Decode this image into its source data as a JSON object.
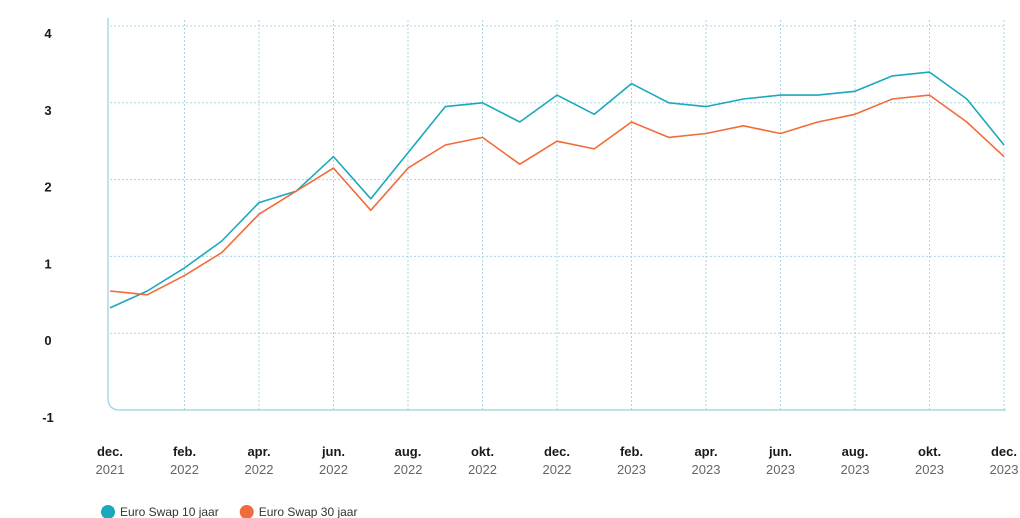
{
  "chart_data": {
    "type": "line",
    "x": [
      "2021-12",
      "2022-01",
      "2022-02",
      "2022-03",
      "2022-04",
      "2022-05",
      "2022-06",
      "2022-07",
      "2022-08",
      "2022-09",
      "2022-10",
      "2022-11",
      "2022-12",
      "2023-01",
      "2023-02",
      "2023-03",
      "2023-04",
      "2023-05",
      "2023-06",
      "2023-07",
      "2023-08",
      "2023-09",
      "2023-10",
      "2023-11",
      "2023-12"
    ],
    "series": [
      {
        "name": "Euro Swap 10 jaar",
        "color": "#1ba8bd",
        "values": [
          0.33,
          0.55,
          0.85,
          1.2,
          1.7,
          1.85,
          2.3,
          1.75,
          2.35,
          2.95,
          3.0,
          2.75,
          3.1,
          2.85,
          3.25,
          3.0,
          2.95,
          3.05,
          3.1,
          3.1,
          3.15,
          3.35,
          3.4,
          3.05,
          2.45
        ]
      },
      {
        "name": "Euro Swap 30 jaar",
        "color": "#f26b3a",
        "values": [
          0.55,
          0.5,
          0.75,
          1.05,
          1.55,
          1.85,
          2.15,
          1.6,
          2.15,
          2.45,
          2.55,
          2.2,
          2.5,
          2.4,
          2.75,
          2.55,
          2.6,
          2.7,
          2.6,
          2.75,
          2.85,
          3.05,
          3.1,
          2.75,
          2.3
        ]
      }
    ],
    "ylim": [
      -1,
      4
    ],
    "yticks": [
      -1,
      0,
      1,
      2,
      3,
      4
    ],
    "xlim": [
      "2021-12",
      "2023-12"
    ],
    "xticks": [
      {
        "value": "2021-12",
        "label": "dec. 2021"
      },
      {
        "value": "2022-02",
        "label": "feb. 2022"
      },
      {
        "value": "2022-04",
        "label": "apr. 2022"
      },
      {
        "value": "2022-06",
        "label": "jun. 2022"
      },
      {
        "value": "2022-08",
        "label": "aug. 2022"
      },
      {
        "value": "2022-10",
        "label": "okt. 2022"
      },
      {
        "value": "2022-12",
        "label": "dec. 2022"
      },
      {
        "value": "2023-02",
        "label": "feb. 2023"
      },
      {
        "value": "2023-04",
        "label": "apr. 2023"
      },
      {
        "value": "2023-06",
        "label": "jun. 2023"
      },
      {
        "value": "2023-08",
        "label": "aug. 2023"
      },
      {
        "value": "2023-10",
        "label": "okt. 2023"
      },
      {
        "value": "2023-12",
        "label": "dec. 2023"
      }
    ],
    "grid": true,
    "legend": "bottom-left"
  }
}
